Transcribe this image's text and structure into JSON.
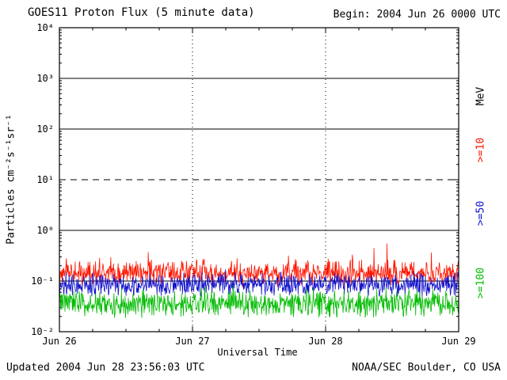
{
  "header": {
    "title": "GOES11 Proton Flux (5 minute data)",
    "begin_label": "Begin: 2004 Jun 26 0000 UTC"
  },
  "right_axis": {
    "unit_label": "MeV",
    "unit_color": "#000000",
    "thresholds": [
      {
        "label": ">=10",
        "color": "#ff1500"
      },
      {
        "label": ">=50",
        "color": "#1111cc"
      },
      {
        "label": ">=100",
        "color": "#00bb00"
      }
    ]
  },
  "footer": {
    "updated": "Updated 2004 Jun 28 23:56:03 UTC",
    "credit": "NOAA/SEC Boulder, CO USA"
  },
  "chart_data": {
    "type": "line",
    "title": "GOES11 Proton Flux (5 minute data)",
    "xlabel": "Universal Time",
    "ylabel": "Particles cm⁻²s⁻¹sr⁻¹",
    "x_ticks": [
      "Jun 26",
      "Jun 27",
      "Jun 28",
      "Jun 29"
    ],
    "x_range_days": 3,
    "y_scale": "log",
    "y_exponent_range": [
      -2,
      4
    ],
    "y_tick_labels": [
      "10⁴",
      "10³",
      "10²",
      "10¹",
      "10⁰",
      "10⁻¹",
      "10⁻²"
    ],
    "points_per_series": 864,
    "series": [
      {
        "name": ">=10 MeV",
        "color": "#ff1500",
        "median_flux": 0.14,
        "noise_decades": 0.3,
        "spike_decades": 0.32,
        "seed": 1104
      },
      {
        "name": ">=50 MeV",
        "color": "#1111cc",
        "median_flux": 0.085,
        "noise_decades": 0.27,
        "spike_decades": 0.22,
        "seed": 2205
      },
      {
        "name": ">=100 MeV",
        "color": "#00bb00",
        "median_flux": 0.036,
        "noise_decades": 0.3,
        "spike_decades": 0.2,
        "seed": 3306
      }
    ],
    "gridlines": {
      "horizontal_solid_exponents": [
        3,
        2,
        0,
        -1
      ],
      "horizontal_dashed_exponents": [
        1
      ],
      "vertical_dotted_day_indices": [
        1,
        2
      ]
    },
    "legend_position": "right-rotated"
  }
}
